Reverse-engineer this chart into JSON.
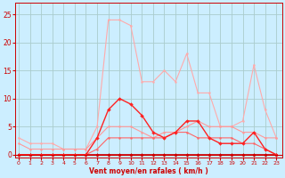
{
  "title": "",
  "xlabel": "Vent moyen/en rafales ( km/h )",
  "ylabel": "",
  "background_color": "#cceeff",
  "grid_color": "#aacccc",
  "x_ticks": [
    0,
    1,
    2,
    3,
    4,
    5,
    6,
    7,
    8,
    9,
    10,
    11,
    12,
    13,
    14,
    15,
    16,
    17,
    18,
    19,
    20,
    21,
    22,
    23
  ],
  "y_ticks": [
    0,
    5,
    10,
    15,
    20,
    25
  ],
  "ylim": [
    -0.5,
    27
  ],
  "xlim": [
    -0.3,
    23.5
  ],
  "lines": [
    {
      "x": [
        0,
        1,
        2,
        3,
        4,
        5,
        6,
        7,
        8,
        9,
        10,
        11,
        12,
        13,
        14,
        15,
        16,
        17,
        18,
        19,
        20,
        21,
        22,
        23
      ],
      "y": [
        3,
        2,
        2,
        2,
        1,
        1,
        1,
        5,
        24,
        24,
        23,
        13,
        13,
        15,
        13,
        18,
        11,
        11,
        5,
        5,
        6,
        16,
        8,
        3
      ],
      "color": "#ffaaaa",
      "lw": 0.8,
      "marker": "o",
      "ms": 1.5,
      "zorder": 1
    },
    {
      "x": [
        0,
        1,
        2,
        3,
        4,
        5,
        6,
        7,
        8,
        9,
        10,
        11,
        12,
        13,
        14,
        15,
        16,
        17,
        18,
        19,
        20,
        21,
        22,
        23
      ],
      "y": [
        2,
        1,
        1,
        1,
        1,
        1,
        1,
        3,
        5,
        5,
        5,
        4,
        3,
        4,
        4,
        5,
        6,
        5,
        5,
        5,
        4,
        4,
        3,
        3
      ],
      "color": "#ff9999",
      "lw": 0.8,
      "marker": "o",
      "ms": 1.5,
      "zorder": 2
    },
    {
      "x": [
        0,
        1,
        2,
        3,
        4,
        5,
        6,
        7,
        8,
        9,
        10,
        11,
        12,
        13,
        14,
        15,
        16,
        17,
        18,
        19,
        20,
        21,
        22,
        23
      ],
      "y": [
        0,
        0,
        0,
        0,
        0,
        0,
        0,
        1,
        3,
        3,
        3,
        3,
        3,
        3,
        4,
        4,
        3,
        3,
        3,
        3,
        2,
        2,
        1,
        0
      ],
      "color": "#ff6666",
      "lw": 0.8,
      "marker": "o",
      "ms": 1.5,
      "zorder": 3
    },
    {
      "x": [
        0,
        1,
        2,
        3,
        4,
        5,
        6,
        7,
        8,
        9,
        10,
        11,
        12,
        13,
        14,
        15,
        16,
        17,
        18,
        19,
        20,
        21,
        22,
        23
      ],
      "y": [
        0,
        0,
        0,
        0,
        0,
        0,
        0,
        3,
        8,
        10,
        9,
        7,
        4,
        3,
        4,
        6,
        6,
        3,
        2,
        2,
        2,
        4,
        1,
        0
      ],
      "color": "#ff2222",
      "lw": 1.0,
      "marker": "D",
      "ms": 2.0,
      "zorder": 5
    },
    {
      "x": [
        0,
        1,
        2,
        3,
        4,
        5,
        6,
        7,
        8,
        9,
        10,
        11,
        12,
        13,
        14,
        15,
        16,
        17,
        18,
        19,
        20,
        21,
        22,
        23
      ],
      "y": [
        0,
        0,
        0,
        0,
        0,
        0,
        0,
        0,
        0,
        0,
        0,
        0,
        0,
        0,
        0,
        0,
        0,
        0,
        0,
        0,
        0,
        0,
        0,
        0
      ],
      "color": "#cc0000",
      "lw": 1.2,
      "marker": "D",
      "ms": 2.0,
      "zorder": 4
    }
  ]
}
